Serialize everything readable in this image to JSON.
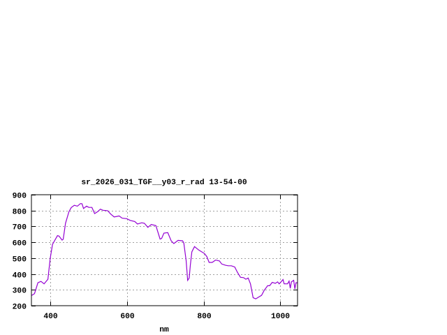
{
  "chart_data": {
    "type": "line",
    "title": "sr_2026_031_TGF__y03_r_rad 13-54-00",
    "xlabel": "nm",
    "ylabel": "",
    "xlim": [
      350,
      1045
    ],
    "ylim": [
      200,
      900
    ],
    "xticks": [
      400,
      600,
      800,
      1000
    ],
    "yticks": [
      200,
      300,
      400,
      500,
      600,
      700,
      800,
      900
    ],
    "grid": true,
    "line_color": "#9400d3",
    "series": [
      {
        "x": [
          351,
          358,
          367,
          375,
          383,
          393,
          399,
          405,
          418,
          422,
          430,
          433,
          439,
          448,
          454,
          462,
          470,
          478,
          482,
          486,
          494,
          500,
          508,
          515,
          523,
          530,
          537,
          549,
          557,
          566,
          573,
          579,
          587,
          599,
          608,
          620,
          627,
          638,
          645,
          654,
          663,
          675,
          686,
          690,
          696,
          706,
          715,
          722,
          733,
          745,
          748,
          754,
          758,
          762,
          765,
          769,
          776,
          787,
          802,
          808,
          814,
          822,
          831,
          841,
          847,
          857,
          864,
          872,
          881,
          888,
          896,
          904,
          910,
          916,
          922,
          929,
          936,
          945,
          951,
          958,
          967,
          972,
          979,
          987,
          993,
          997,
          1002,
          1007,
          1010,
          1019,
          1023,
          1026,
          1029,
          1035,
          1038,
          1041,
          1044
        ],
        "y": [
          265,
          276,
          345,
          353,
          338,
          367,
          499,
          587,
          642,
          639,
          614,
          619,
          720,
          793,
          819,
          833,
          828,
          844,
          843,
          813,
          828,
          820,
          820,
          781,
          793,
          809,
          802,
          799,
          778,
          760,
          763,
          766,
          752,
          749,
          738,
          731,
          715,
          723,
          720,
          694,
          712,
          705,
          620,
          624,
          658,
          661,
          609,
          592,
          612,
          609,
          595,
          485,
          360,
          375,
          455,
          540,
          573,
          551,
          529,
          510,
          473,
          473,
          488,
          482,
          463,
          455,
          452,
          452,
          444,
          411,
          379,
          377,
          367,
          375,
          338,
          250,
          243,
          257,
          265,
          297,
          326,
          326,
          347,
          341,
          350,
          338,
          350,
          365,
          338,
          338,
          355,
          309,
          350,
          360,
          306,
          345,
          345
        ]
      }
    ]
  }
}
